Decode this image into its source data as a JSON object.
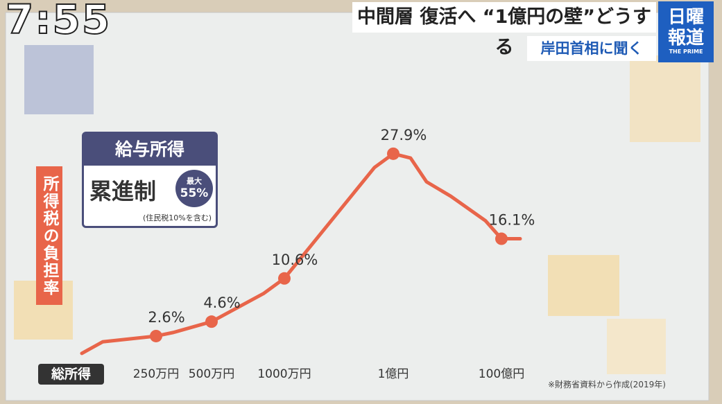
{
  "overlay": {
    "clock": "7:55",
    "headline": "中間層 復活へ “1億円の壁”どうする",
    "subheadline": "岸田首相に聞く",
    "logo": "日曜報道",
    "logo_sub": "THE PRIME"
  },
  "chart_data": {
    "type": "line",
    "y_label": "所得税の負担率",
    "x_label": "総所得",
    "categories": [
      null,
      null,
      "250万円",
      null,
      "500万円",
      null,
      "1000万円",
      null,
      "1億円",
      null,
      null,
      null,
      null,
      "100億円",
      null
    ],
    "series": [
      {
        "color": "#e8654a",
        "values": [
          0.2,
          1.8,
          2.6,
          3.1,
          4.6,
          8.5,
          10.6,
          26,
          27.9,
          27.3,
          24,
          22,
          18.6,
          16.1,
          16.1
        ],
        "value_labels": [
          null,
          null,
          "2.6%",
          null,
          "4.6%",
          null,
          "10.6%",
          null,
          "27.9%",
          null,
          null,
          null,
          null,
          "16.1%",
          null
        ]
      }
    ],
    "ylim": [
      0,
      30
    ],
    "info_box": {
      "title": "給与所得",
      "text": "累進制",
      "badge_top": "最大",
      "badge_value": "55%",
      "note": "(住民税10%を含む)"
    },
    "source": "※財務省資料から作成(2019年)"
  }
}
